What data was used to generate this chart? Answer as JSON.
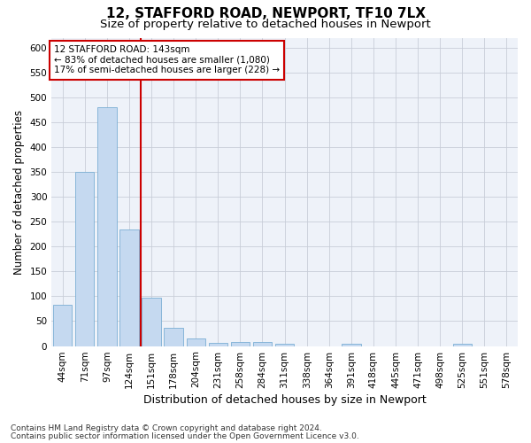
{
  "title1": "12, STAFFORD ROAD, NEWPORT, TF10 7LX",
  "title2": "Size of property relative to detached houses in Newport",
  "xlabel": "Distribution of detached houses by size in Newport",
  "ylabel": "Number of detached properties",
  "bar_labels": [
    "44sqm",
    "71sqm",
    "97sqm",
    "124sqm",
    "151sqm",
    "178sqm",
    "204sqm",
    "231sqm",
    "258sqm",
    "284sqm",
    "311sqm",
    "338sqm",
    "364sqm",
    "391sqm",
    "418sqm",
    "445sqm",
    "471sqm",
    "498sqm",
    "525sqm",
    "551sqm",
    "578sqm"
  ],
  "bar_values": [
    83,
    350,
    480,
    235,
    97,
    36,
    15,
    7,
    8,
    8,
    4,
    0,
    0,
    5,
    0,
    0,
    0,
    0,
    4,
    0,
    0
  ],
  "bar_color": "#c5d9f0",
  "bar_edge_color": "#7bafd4",
  "red_line_index": 4,
  "red_line_color": "#cc0000",
  "annotation_text": "12 STAFFORD ROAD: 143sqm\n← 83% of detached houses are smaller (1,080)\n17% of semi-detached houses are larger (228) →",
  "annotation_box_color": "#ffffff",
  "annotation_box_edge": "#cc0000",
  "ylim": [
    0,
    620
  ],
  "yticks": [
    0,
    50,
    100,
    150,
    200,
    250,
    300,
    350,
    400,
    450,
    500,
    550,
    600
  ],
  "footer1": "Contains HM Land Registry data © Crown copyright and database right 2024.",
  "footer2": "Contains public sector information licensed under the Open Government Licence v3.0.",
  "bg_color": "#ffffff",
  "plot_bg_color": "#eef2f9",
  "grid_color": "#c8cdd8",
  "title1_fontsize": 11,
  "title2_fontsize": 9.5,
  "xlabel_fontsize": 9,
  "ylabel_fontsize": 8.5,
  "tick_fontsize": 7.5,
  "annot_fontsize": 7.5,
  "footer_fontsize": 6.5
}
